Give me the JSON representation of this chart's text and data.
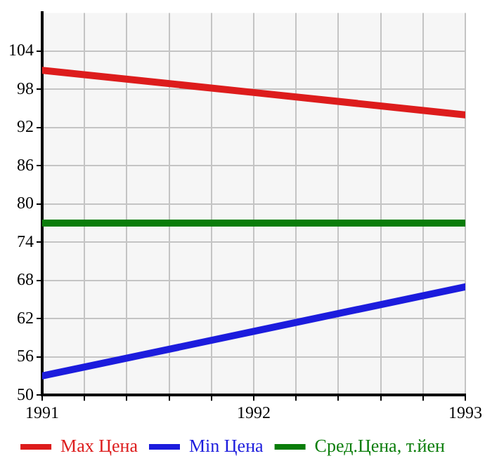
{
  "chart_data": {
    "type": "line",
    "x": [
      1991,
      1992,
      1993
    ],
    "series": [
      {
        "name": "Max Цена",
        "color": "#dd1c1c",
        "values": [
          101,
          97.5,
          94
        ]
      },
      {
        "name": "Min Цена",
        "color": "#1c1cdd",
        "values": [
          53,
          60,
          67
        ]
      },
      {
        "name": "Сред.Цена, т.йен",
        "color": "#0a7d0a",
        "values": [
          77,
          77,
          77
        ]
      }
    ],
    "xlim": [
      1991,
      1993
    ],
    "xticks": [
      {
        "value": 1991,
        "label": "1991"
      },
      {
        "value": 1991.2,
        "label": null
      },
      {
        "value": 1991.4,
        "label": null
      },
      {
        "value": 1991.6,
        "label": null
      },
      {
        "value": 1991.8,
        "label": null
      },
      {
        "value": 1992,
        "label": "1992"
      },
      {
        "value": 1992.2,
        "label": null
      },
      {
        "value": 1992.4,
        "label": null
      },
      {
        "value": 1992.6,
        "label": null
      },
      {
        "value": 1992.8,
        "label": null
      },
      {
        "value": 1993,
        "label": "1993"
      }
    ],
    "ylim": [
      50,
      110
    ],
    "yticks": [
      50,
      56,
      62,
      68,
      74,
      80,
      86,
      92,
      98,
      104
    ],
    "grid": true,
    "legend": "bottom",
    "marker": "none",
    "line_style": "solid"
  }
}
